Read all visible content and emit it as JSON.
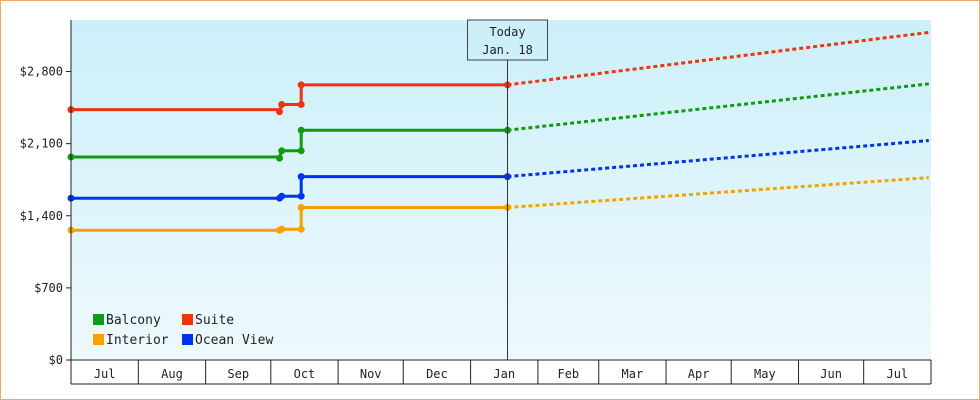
{
  "chart_data": {
    "type": "line",
    "title": "",
    "xlabel": "",
    "ylabel": "",
    "x_months": [
      "Jul",
      "Aug",
      "Sep",
      "Oct",
      "Nov",
      "Dec",
      "Jan",
      "Feb",
      "Mar",
      "Apr",
      "May",
      "Jun",
      "Jul"
    ],
    "y_ticks": [
      "$0",
      "$700",
      "$1,400",
      "$2,100",
      "$2,800"
    ],
    "y_tick_values": [
      0,
      700,
      1400,
      2100,
      2800
    ],
    "ylim": [
      0,
      3300
    ],
    "x_domain": [
      "2021-07-01",
      "2022-07-31"
    ],
    "today": {
      "line1": "Today",
      "line2": "Jan. 18",
      "date": "2022-01-18"
    },
    "grid": false,
    "background": {
      "top": "#cceff9",
      "bottom": "#eef9fd"
    },
    "legend": {
      "placement": "bottom-left",
      "columns": 2,
      "entries": [
        {
          "label": "Balcony",
          "color": "#119911"
        },
        {
          "label": "Suite",
          "color": "#ee3311"
        },
        {
          "label": "Interior",
          "color": "#f5a100"
        },
        {
          "label": "Ocean View",
          "color": "#0033ee"
        }
      ]
    },
    "series": [
      {
        "name": "Suite",
        "color": "#ee3311",
        "history": [
          [
            "2021-07-01",
            2430
          ],
          [
            "2021-10-05",
            2430
          ],
          [
            "2021-10-05",
            2410
          ],
          [
            "2021-10-06",
            2480
          ],
          [
            "2021-10-15",
            2480
          ],
          [
            "2021-10-15",
            2670
          ],
          [
            "2022-01-18",
            2670
          ]
        ],
        "markers": [
          [
            "2021-07-01",
            2430
          ],
          [
            "2021-10-05",
            2410
          ],
          [
            "2021-10-06",
            2480
          ],
          [
            "2021-10-15",
            2480
          ],
          [
            "2021-10-15",
            2670
          ],
          [
            "2022-01-18",
            2670
          ]
        ],
        "projection": [
          [
            "2022-01-18",
            2670
          ],
          [
            "2022-07-31",
            3180
          ]
        ]
      },
      {
        "name": "Balcony",
        "color": "#119911",
        "history": [
          [
            "2021-07-01",
            1970
          ],
          [
            "2021-10-05",
            1970
          ],
          [
            "2021-10-05",
            1960
          ],
          [
            "2021-10-06",
            2030
          ],
          [
            "2021-10-15",
            2030
          ],
          [
            "2021-10-15",
            2230
          ],
          [
            "2022-01-18",
            2230
          ]
        ],
        "markers": [
          [
            "2021-07-01",
            1970
          ],
          [
            "2021-10-05",
            1960
          ],
          [
            "2021-10-06",
            2030
          ],
          [
            "2021-10-15",
            2030
          ],
          [
            "2021-10-15",
            2230
          ],
          [
            "2022-01-18",
            2230
          ]
        ],
        "projection": [
          [
            "2022-01-18",
            2230
          ],
          [
            "2022-07-31",
            2680
          ]
        ]
      },
      {
        "name": "Ocean View",
        "color": "#0033ee",
        "history": [
          [
            "2021-07-01",
            1570
          ],
          [
            "2021-10-05",
            1570
          ],
          [
            "2021-10-06",
            1590
          ],
          [
            "2021-10-15",
            1590
          ],
          [
            "2021-10-15",
            1780
          ],
          [
            "2022-01-18",
            1780
          ]
        ],
        "markers": [
          [
            "2021-07-01",
            1570
          ],
          [
            "2021-10-05",
            1570
          ],
          [
            "2021-10-06",
            1590
          ],
          [
            "2021-10-15",
            1590
          ],
          [
            "2021-10-15",
            1780
          ],
          [
            "2022-01-18",
            1780
          ]
        ],
        "projection": [
          [
            "2022-01-18",
            1780
          ],
          [
            "2022-07-31",
            2130
          ]
        ]
      },
      {
        "name": "Interior",
        "color": "#f5a100",
        "history": [
          [
            "2021-07-01",
            1260
          ],
          [
            "2021-10-05",
            1260
          ],
          [
            "2021-10-06",
            1270
          ],
          [
            "2021-10-15",
            1270
          ],
          [
            "2021-10-15",
            1480
          ],
          [
            "2022-01-18",
            1480
          ]
        ],
        "markers": [
          [
            "2021-07-01",
            1260
          ],
          [
            "2021-10-05",
            1260
          ],
          [
            "2021-10-06",
            1270
          ],
          [
            "2021-10-15",
            1270
          ],
          [
            "2021-10-15",
            1480
          ],
          [
            "2022-01-18",
            1480
          ]
        ],
        "projection": [
          [
            "2022-01-18",
            1480
          ],
          [
            "2022-07-31",
            1770
          ]
        ]
      }
    ]
  }
}
